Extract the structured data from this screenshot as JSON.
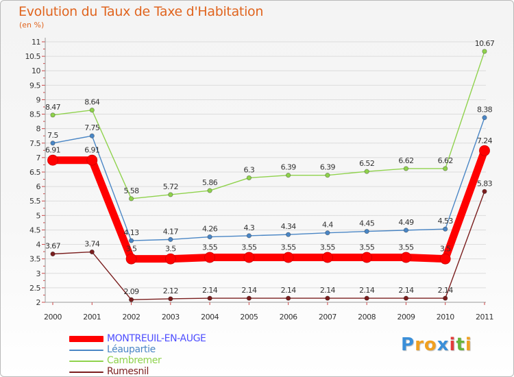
{
  "title": "Evolution du Taux de Taxe d'Habitation",
  "unit_label": "(en %)",
  "logo": {
    "text": "Proxiti",
    "letters": [
      {
        "char": "P",
        "color": "#3a8fd9"
      },
      {
        "char": "r",
        "color": "#f0a020"
      },
      {
        "char": "o",
        "color": "#f0a020"
      },
      {
        "char": "x",
        "color": "#3a8fd9"
      },
      {
        "char": "i",
        "color": "#e23d3d"
      },
      {
        "char": "t",
        "color": "#68b43a"
      },
      {
        "char": "i",
        "color": "#f0a020"
      }
    ]
  },
  "chart_data": {
    "type": "line",
    "title": "Evolution du Taux de Taxe d'Habitation",
    "ylabel": "(en %)",
    "xlabel": "",
    "x": [
      "2000",
      "2001",
      "2002",
      "2003",
      "2004",
      "2005",
      "2006",
      "2007",
      "2008",
      "2009",
      "2010",
      "2011"
    ],
    "ylim": [
      2,
      11
    ],
    "yticks": [
      "2",
      "2.5",
      "3",
      "3.5",
      "4",
      "4.5",
      "5",
      "5.5",
      "6",
      "6.5",
      "7",
      "7.5",
      "8",
      "8.5",
      "9",
      "9.5",
      "10",
      "10.5",
      "11"
    ],
    "grid": "horizontal",
    "legend_position": "bottom-left",
    "series": [
      {
        "name": "MONTREUIL-EN-AUGE",
        "color": "#ff0000",
        "legend_text_color": "#4d4dff",
        "values": [
          6.91,
          6.91,
          3.5,
          3.5,
          3.55,
          3.55,
          3.55,
          3.55,
          3.55,
          3.55,
          3.5,
          7.24
        ],
        "labels": [
          "6.91",
          "6.91",
          "3.5",
          "3.5",
          "3.55",
          "3.55",
          "3.55",
          "3.55",
          "3.55",
          "3.55",
          "3.5",
          "7.24"
        ]
      },
      {
        "name": "Léaupartie",
        "color": "#4a86c5",
        "legend_text_color": "#4a86c5",
        "values": [
          7.5,
          7.75,
          4.13,
          4.17,
          4.26,
          4.3,
          4.34,
          4.4,
          4.45,
          4.49,
          4.53,
          8.38
        ],
        "labels": [
          "7.5",
          "7.75",
          "4.13",
          "4.17",
          "4.26",
          "4.3",
          "4.34",
          "4.4",
          "4.45",
          "4.49",
          "4.53",
          "8.38"
        ]
      },
      {
        "name": "Cambremer",
        "color": "#8fd24c",
        "legend_text_color": "#8fd24c",
        "values": [
          8.47,
          8.64,
          5.58,
          5.72,
          5.86,
          6.3,
          6.39,
          6.39,
          6.52,
          6.62,
          6.62,
          10.67
        ],
        "labels": [
          "8.47",
          "8.64",
          "5.58",
          "5.72",
          "5.86",
          "6.3",
          "6.39",
          "6.39",
          "6.52",
          "6.62",
          "6.62",
          "10.67"
        ]
      },
      {
        "name": "Rumesnil",
        "color": "#7a1e1e",
        "legend_text_color": "#7a1e1e",
        "values": [
          3.67,
          3.74,
          2.09,
          2.12,
          2.14,
          2.14,
          2.14,
          2.14,
          2.14,
          2.14,
          2.14,
          5.83
        ],
        "labels": [
          "3.67",
          "3.74",
          "2.09",
          "2.12",
          "2.14",
          "2.14",
          "2.14",
          "2.14",
          "2.14",
          "2.14",
          "2.14",
          "5.83"
        ]
      }
    ]
  }
}
